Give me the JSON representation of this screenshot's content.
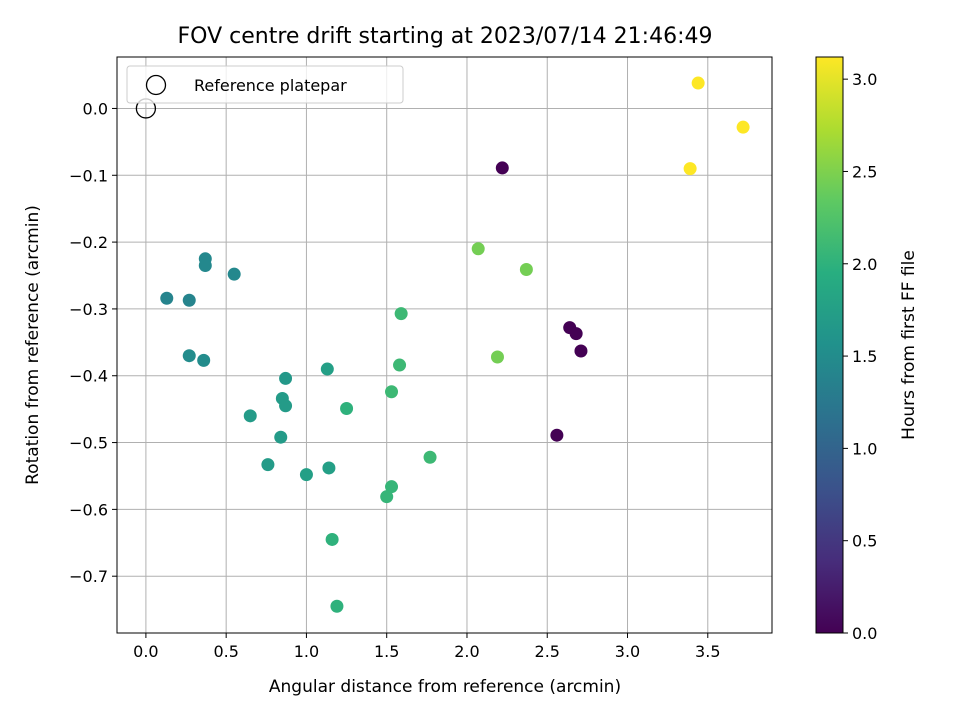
{
  "chart_data": {
    "type": "scatter",
    "title": "FOV centre drift starting at 2023/07/14 21:46:49",
    "xlabel": "Angular distance from reference (arcmin)",
    "ylabel": "Rotation from reference (arcmin)",
    "xlim": [
      -0.18,
      3.9
    ],
    "ylim": [
      -0.785,
      0.077
    ],
    "xticks": [
      0.0,
      0.5,
      1.0,
      1.5,
      2.0,
      2.5,
      3.0,
      3.5
    ],
    "xtick_labels": [
      "0.0",
      "0.5",
      "1.0",
      "1.5",
      "2.0",
      "2.5",
      "3.0",
      "3.5"
    ],
    "yticks": [
      0.0,
      -0.1,
      -0.2,
      -0.3,
      -0.4,
      -0.5,
      -0.6,
      -0.7
    ],
    "ytick_labels": [
      "0.0",
      "−0.1",
      "−0.2",
      "−0.3",
      "−0.4",
      "−0.5",
      "−0.6",
      "−0.7"
    ],
    "grid": true,
    "legend": {
      "position": "top-left",
      "entries": [
        "Reference platepar"
      ]
    },
    "reference_point": {
      "x": 0.0,
      "y": 0.0
    },
    "colorbar": {
      "label": "Hours from first FF file",
      "colormap": "viridis",
      "range": [
        0.0,
        3.12
      ],
      "ticks": [
        0.0,
        0.5,
        1.0,
        1.5,
        2.0,
        2.5,
        3.0
      ],
      "tick_labels": [
        "0.0",
        "0.5",
        "1.0",
        "1.5",
        "2.0",
        "2.5",
        "3.0"
      ]
    },
    "points": [
      {
        "x": 2.22,
        "y": -0.089,
        "c": 0.0
      },
      {
        "x": 2.64,
        "y": -0.328,
        "c": 0.0
      },
      {
        "x": 2.68,
        "y": -0.337,
        "c": 0.0
      },
      {
        "x": 2.71,
        "y": -0.363,
        "c": 0.0
      },
      {
        "x": 2.56,
        "y": -0.489,
        "c": 0.0
      },
      {
        "x": 0.13,
        "y": -0.284,
        "c": 1.4
      },
      {
        "x": 0.27,
        "y": -0.287,
        "c": 1.4
      },
      {
        "x": 0.37,
        "y": -0.225,
        "c": 1.45
      },
      {
        "x": 0.37,
        "y": -0.235,
        "c": 1.45
      },
      {
        "x": 0.55,
        "y": -0.248,
        "c": 1.45
      },
      {
        "x": 0.27,
        "y": -0.37,
        "c": 1.5
      },
      {
        "x": 0.36,
        "y": -0.377,
        "c": 1.5
      },
      {
        "x": 0.87,
        "y": -0.404,
        "c": 1.65
      },
      {
        "x": 0.65,
        "y": -0.46,
        "c": 1.7
      },
      {
        "x": 0.85,
        "y": -0.434,
        "c": 1.7
      },
      {
        "x": 0.87,
        "y": -0.445,
        "c": 1.7
      },
      {
        "x": 0.84,
        "y": -0.492,
        "c": 1.7
      },
      {
        "x": 0.76,
        "y": -0.533,
        "c": 1.7
      },
      {
        "x": 1.13,
        "y": -0.39,
        "c": 1.75
      },
      {
        "x": 1.0,
        "y": -0.548,
        "c": 1.75
      },
      {
        "x": 1.14,
        "y": -0.538,
        "c": 1.75
      },
      {
        "x": 1.16,
        "y": -0.645,
        "c": 2.0
      },
      {
        "x": 1.19,
        "y": -0.745,
        "c": 2.0
      },
      {
        "x": 1.25,
        "y": -0.449,
        "c": 2.0
      },
      {
        "x": 1.59,
        "y": -0.307,
        "c": 2.1
      },
      {
        "x": 1.58,
        "y": -0.384,
        "c": 2.1
      },
      {
        "x": 1.53,
        "y": -0.424,
        "c": 2.1
      },
      {
        "x": 1.77,
        "y": -0.522,
        "c": 2.1
      },
      {
        "x": 1.53,
        "y": -0.566,
        "c": 2.05
      },
      {
        "x": 1.5,
        "y": -0.581,
        "c": 2.05
      },
      {
        "x": 2.07,
        "y": -0.21,
        "c": 2.45
      },
      {
        "x": 2.37,
        "y": -0.241,
        "c": 2.45
      },
      {
        "x": 2.19,
        "y": -0.372,
        "c": 2.45
      },
      {
        "x": 3.44,
        "y": 0.038,
        "c": 3.12
      },
      {
        "x": 3.72,
        "y": -0.028,
        "c": 3.12
      },
      {
        "x": 3.39,
        "y": -0.09,
        "c": 3.12
      }
    ]
  }
}
